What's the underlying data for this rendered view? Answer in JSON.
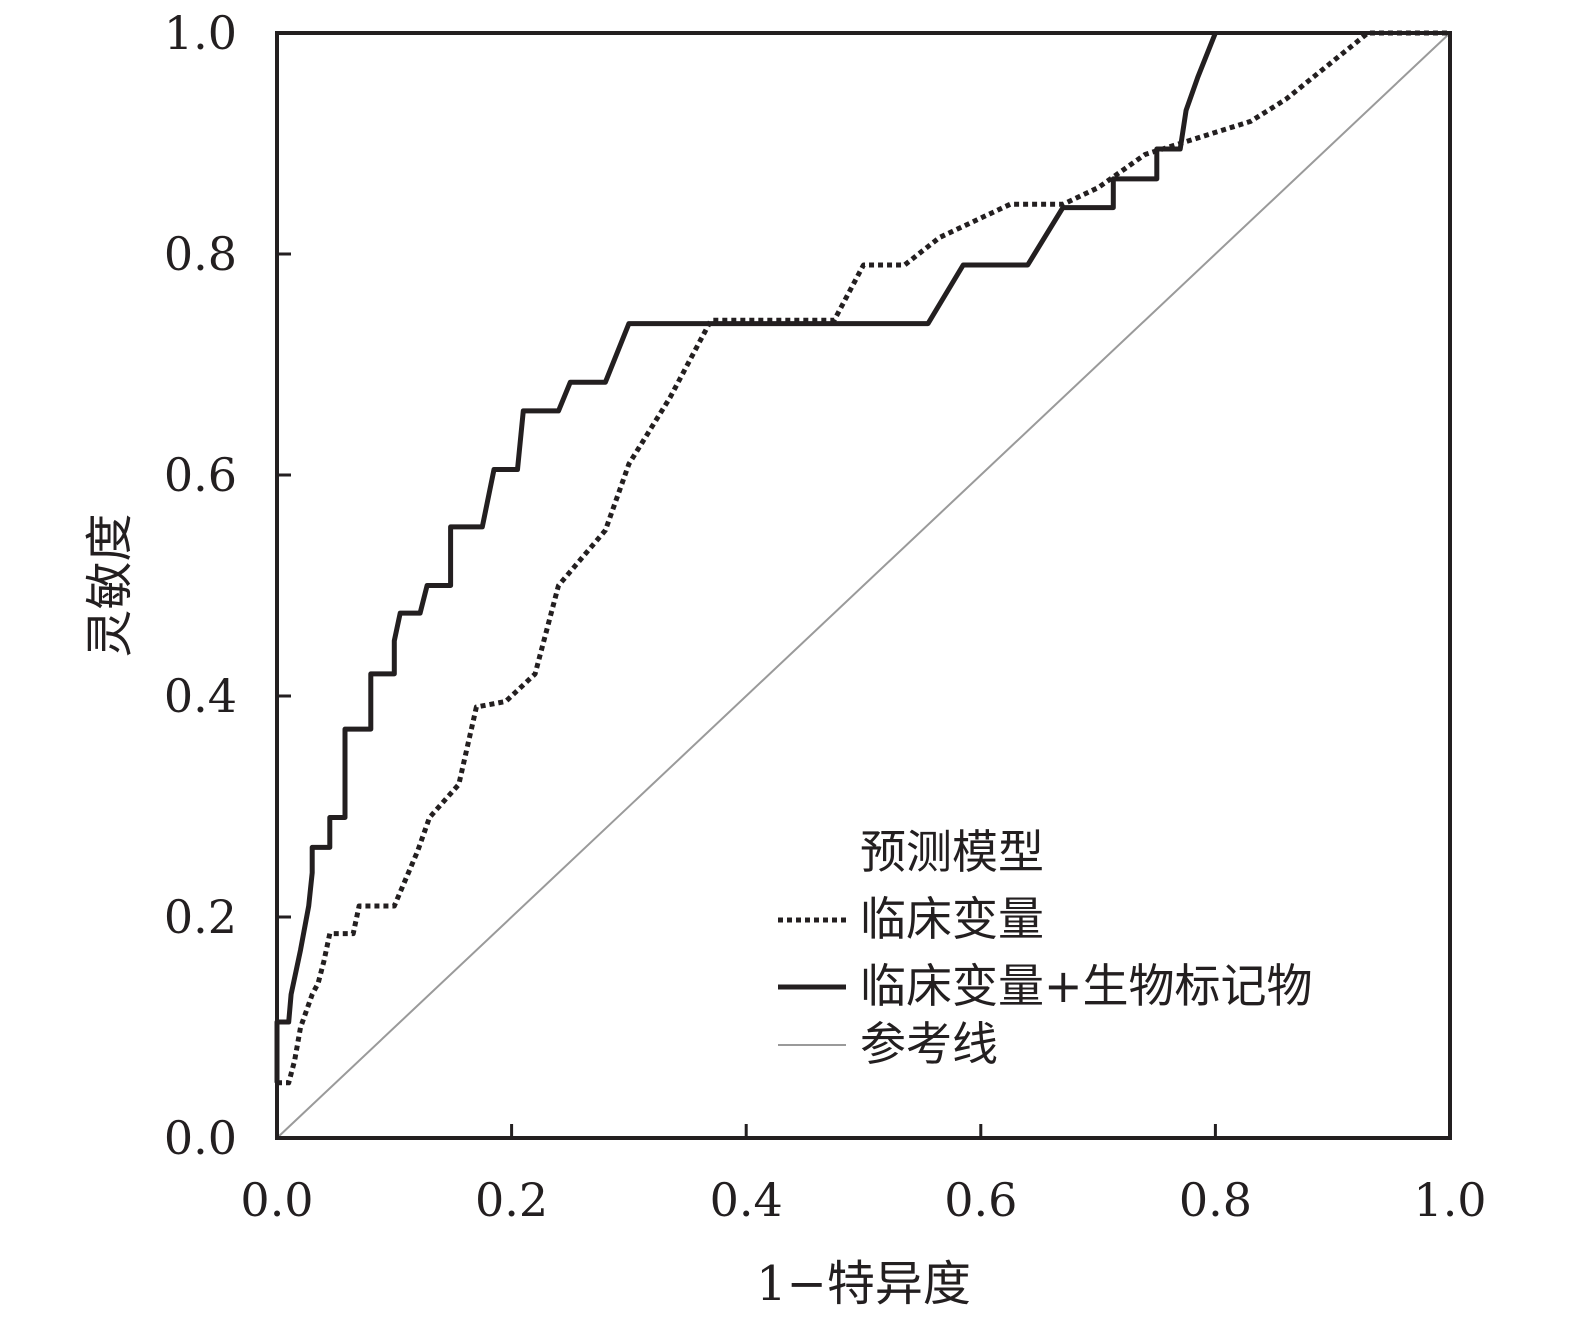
{
  "chart_data": {
    "type": "line",
    "xlabel": "1−特异度",
    "ylabel": "灵敏度",
    "xlim": [
      0,
      1
    ],
    "ylim": [
      0,
      1
    ],
    "x_ticks": [
      "0.0",
      "0.2",
      "0.4",
      "0.6",
      "0.8",
      "1.0"
    ],
    "y_ticks": [
      "0.0",
      "0.2",
      "0.4",
      "0.6",
      "0.8",
      "1.0"
    ],
    "grid": false,
    "legend": {
      "title": "预测模型",
      "position": "lower-right"
    },
    "series": [
      {
        "name": "临床变量",
        "style": "dotted",
        "color": "#231f20",
        "points": [
          [
            0,
            0.05
          ],
          [
            0.01,
            0.05
          ],
          [
            0.015,
            0.07
          ],
          [
            0.02,
            0.1
          ],
          [
            0.03,
            0.13
          ],
          [
            0.035,
            0.14
          ],
          [
            0.04,
            0.16
          ],
          [
            0.045,
            0.185
          ],
          [
            0.065,
            0.185
          ],
          [
            0.07,
            0.21
          ],
          [
            0.1,
            0.21
          ],
          [
            0.12,
            0.26
          ],
          [
            0.13,
            0.29
          ],
          [
            0.155,
            0.32
          ],
          [
            0.17,
            0.39
          ],
          [
            0.195,
            0.395
          ],
          [
            0.22,
            0.42
          ],
          [
            0.24,
            0.5
          ],
          [
            0.28,
            0.55
          ],
          [
            0.3,
            0.61
          ],
          [
            0.335,
            0.67
          ],
          [
            0.37,
            0.74
          ],
          [
            0.475,
            0.74
          ],
          [
            0.5,
            0.79
          ],
          [
            0.535,
            0.79
          ],
          [
            0.565,
            0.815
          ],
          [
            0.625,
            0.845
          ],
          [
            0.67,
            0.845
          ],
          [
            0.7,
            0.86
          ],
          [
            0.74,
            0.89
          ],
          [
            0.8,
            0.91
          ],
          [
            0.83,
            0.92
          ],
          [
            0.86,
            0.94
          ],
          [
            0.93,
            1.0
          ],
          [
            1.0,
            1.0
          ]
        ]
      },
      {
        "name": "临床变量+生物标记物",
        "style": "solid",
        "color": "#231f20",
        "points": [
          [
            0,
            0.05
          ],
          [
            0,
            0.105
          ],
          [
            0.01,
            0.105
          ],
          [
            0.012,
            0.13
          ],
          [
            0.02,
            0.17
          ],
          [
            0.027,
            0.21
          ],
          [
            0.03,
            0.24
          ],
          [
            0.03,
            0.263
          ],
          [
            0.045,
            0.263
          ],
          [
            0.045,
            0.29
          ],
          [
            0.058,
            0.29
          ],
          [
            0.058,
            0.37
          ],
          [
            0.08,
            0.37
          ],
          [
            0.08,
            0.42
          ],
          [
            0.1,
            0.42
          ],
          [
            0.1,
            0.45
          ],
          [
            0.105,
            0.475
          ],
          [
            0.122,
            0.475
          ],
          [
            0.128,
            0.5
          ],
          [
            0.148,
            0.5
          ],
          [
            0.148,
            0.553
          ],
          [
            0.175,
            0.553
          ],
          [
            0.185,
            0.605
          ],
          [
            0.205,
            0.605
          ],
          [
            0.21,
            0.658
          ],
          [
            0.24,
            0.658
          ],
          [
            0.25,
            0.684
          ],
          [
            0.28,
            0.684
          ],
          [
            0.3,
            0.737
          ],
          [
            0.555,
            0.737
          ],
          [
            0.585,
            0.79
          ],
          [
            0.64,
            0.79
          ],
          [
            0.67,
            0.842
          ],
          [
            0.713,
            0.842
          ],
          [
            0.713,
            0.868
          ],
          [
            0.75,
            0.868
          ],
          [
            0.75,
            0.895
          ],
          [
            0.77,
            0.895
          ],
          [
            0.775,
            0.93
          ],
          [
            0.785,
            0.96
          ],
          [
            0.8,
            1.0
          ]
        ]
      },
      {
        "name": "参考线",
        "style": "thin",
        "color": "#9a9a9a",
        "points": [
          [
            0,
            0
          ],
          [
            1,
            1
          ]
        ]
      }
    ]
  }
}
